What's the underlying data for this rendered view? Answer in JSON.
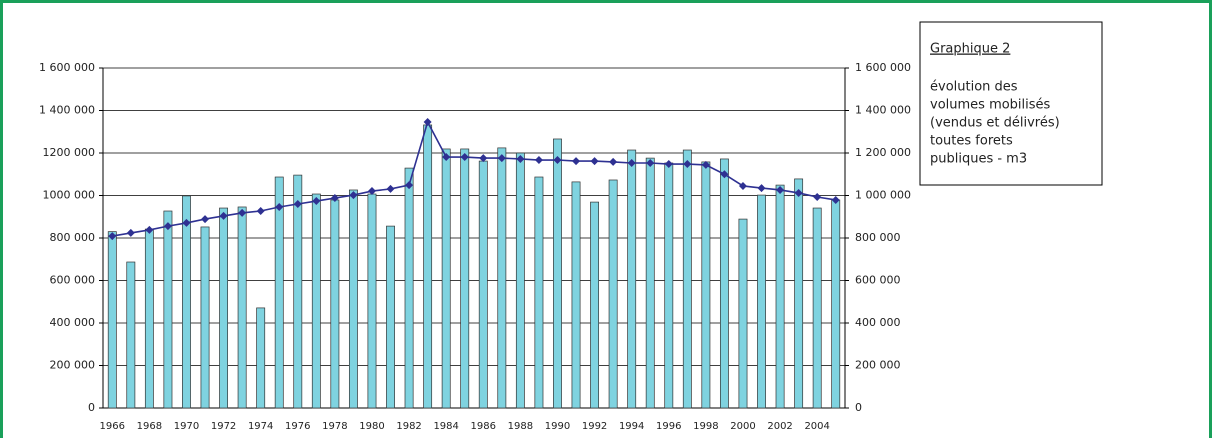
{
  "chart_data": {
    "type": "bar_line",
    "note_title": "Graphique 2",
    "note_lines": [
      "évolution des",
      "volumes mobilisés",
      "(vendus et délivrés)",
      "toutes forets",
      "publiques - m3"
    ],
    "categories": [
      "1966",
      null,
      "1968",
      null,
      "1970",
      null,
      "1972",
      null,
      "1974",
      null,
      "1976",
      null,
      "1978",
      null,
      "1980",
      null,
      "1982",
      null,
      "1984",
      null,
      "1986",
      null,
      "1988",
      null,
      "1990",
      null,
      "1992",
      null,
      "1994",
      null,
      "1996",
      null,
      "1998",
      null,
      "2000",
      null,
      "2002",
      null,
      "2004",
      null
    ],
    "series": [
      {
        "type": "bar",
        "color": "#7fd3e0",
        "values": [
          830000,
          687000,
          842000,
          927000,
          998000,
          852000,
          941000,
          946000,
          471000,
          1087000,
          1096000,
          1007000,
          979000,
          1026000,
          1007000,
          856000,
          1129000,
          1332000,
          1219000,
          1219000,
          1162000,
          1224000,
          1200000,
          1087000,
          1266000,
          1064000,
          969000,
          1073000,
          1214000,
          1176000,
          1153000,
          1214000,
          1158000,
          1172000,
          889000,
          1002000,
          1049000,
          1078000,
          941000,
          979000
        ]
      },
      {
        "type": "line",
        "color": "#2e3192",
        "values": [
          809000,
          824000,
          838000,
          856000,
          871000,
          889000,
          904000,
          918000,
          927000,
          946000,
          960000,
          974000,
          988000,
          1002000,
          1021000,
          1031000,
          1049000,
          1346000,
          1181000,
          1181000,
          1176000,
          1176000,
          1172000,
          1167000,
          1167000,
          1162000,
          1162000,
          1158000,
          1153000,
          1153000,
          1148000,
          1148000,
          1144000,
          1100000,
          1045000,
          1035000,
          1026000,
          1012000,
          993000,
          979000
        ]
      }
    ],
    "ylim": [
      0,
      1600000
    ],
    "yticks": [
      0,
      {
        "value": 200000,
        "label": "200 000"
      },
      {
        "value": 400000,
        "label": "400 000"
      },
      {
        "value": 600000,
        "label": "600 000"
      },
      {
        "value": 800000,
        "label": "800 000"
      },
      {
        "value": 1000000,
        "label": "1000 000"
      },
      {
        "value": 1200000,
        "label": "1200 000"
      },
      {
        "value": 1400000,
        "label": "1 400 000"
      },
      {
        "value": 1600000,
        "label": "1 600 000"
      }
    ],
    "y2lim": [
      0,
      1600000
    ],
    "y2ticks": [
      0,
      {
        "value": 200000,
        "label": "200 000"
      },
      {
        "value": 400000,
        "label": "400 000"
      },
      {
        "value": 600000,
        "label": "600 000"
      },
      {
        "value": 800000,
        "label": "800 000"
      },
      {
        "value": 1000000,
        "label": "1 000 000"
      },
      {
        "value": 1200000,
        "label": "1 200 000"
      },
      {
        "value": 1400000,
        "label": "1 400 000"
      },
      {
        "value": 1600000,
        "label": "1 600 000"
      }
    ],
    "grid": true
  }
}
